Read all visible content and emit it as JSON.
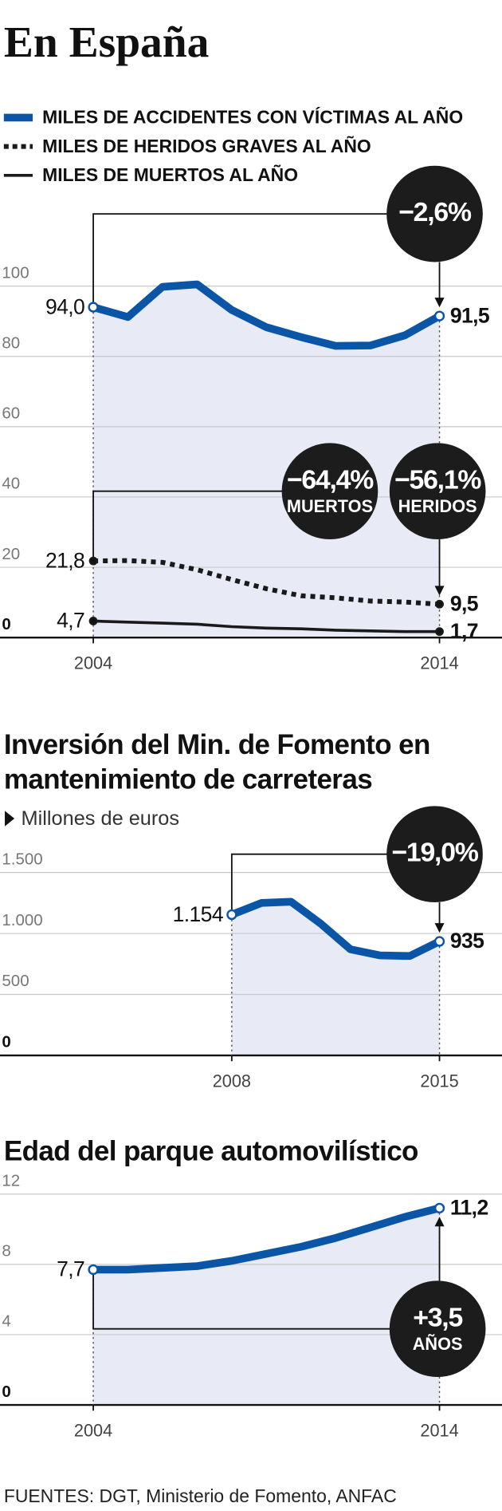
{
  "header": {
    "title": "En España"
  },
  "chart_data": [
    {
      "type": "line",
      "x": [
        2004,
        2005,
        2006,
        2007,
        2008,
        2009,
        2010,
        2011,
        2012,
        2013,
        2014
      ],
      "xlim": [
        2004,
        2014
      ],
      "xticks": [
        2004,
        2014
      ],
      "ylim": [
        0,
        100
      ],
      "yticks": [
        0,
        20,
        40,
        60,
        80,
        100
      ],
      "grid": true,
      "area_fill": "#e8ebf6",
      "series": [
        {
          "name": "MILES DE ACCIDENTES CON VÍCTIMAS AL AÑO",
          "color": "#0b55a6",
          "line_width": 8,
          "dashed": false,
          "values": [
            94.0,
            91.2,
            99.8,
            100.5,
            93.2,
            88.3,
            85.5,
            83.0,
            83.1,
            86.0,
            91.5
          ],
          "value_labels": [
            "94,0",
            null,
            null,
            null,
            null,
            null,
            null,
            null,
            null,
            null,
            "91,5"
          ]
        },
        {
          "name": "MILES DE HERIDOS GRAVES AL AÑO",
          "color": "#1a1a1a",
          "line_width": 5,
          "dashed": true,
          "values": [
            21.8,
            21.9,
            21.4,
            19.3,
            16.5,
            13.9,
            11.9,
            11.3,
            10.4,
            10.1,
            9.5
          ],
          "value_labels": [
            "21,8",
            null,
            null,
            null,
            null,
            null,
            null,
            null,
            null,
            null,
            "9,5"
          ]
        },
        {
          "name": "MILES DE MUERTOS AL AÑO",
          "color": "#1a1a1a",
          "line_width": 3,
          "dashed": false,
          "values": [
            4.7,
            4.4,
            4.1,
            3.8,
            3.1,
            2.7,
            2.5,
            2.1,
            1.9,
            1.7,
            1.7
          ],
          "value_labels": [
            "4,7",
            null,
            null,
            null,
            null,
            null,
            null,
            null,
            null,
            null,
            "1,7"
          ]
        }
      ],
      "annotations": [
        {
          "text": "−2,6%"
        },
        {
          "text": "−64,4%",
          "label": "MUERTOS"
        },
        {
          "text": "−56,1%",
          "label": "HERIDOS"
        }
      ]
    },
    {
      "type": "line",
      "title": "Inversión del Min. de Fomento en mantenimiento de carreteras",
      "subtitle": "Millones de euros",
      "x": [
        2008,
        2009,
        2010,
        2011,
        2012,
        2013,
        2014,
        2015
      ],
      "xlim": [
        2008,
        2015
      ],
      "xticks": [
        2008,
        2015
      ],
      "ylim": [
        0,
        1500
      ],
      "yticks": [
        0,
        500,
        {
          "value": 1000,
          "label": "1.000"
        },
        {
          "value": 1500,
          "label": "1.500"
        }
      ],
      "grid": true,
      "area_fill": "#e8ebf6",
      "series": [
        {
          "color": "#0b55a6",
          "line_width": 8,
          "dashed": false,
          "values": [
            1154,
            1250,
            1260,
            1080,
            870,
            820,
            815,
            935
          ],
          "value_labels": [
            "1.154",
            null,
            null,
            null,
            null,
            null,
            null,
            "935"
          ]
        }
      ],
      "annotations": [
        {
          "text": "−19,0%"
        }
      ]
    },
    {
      "type": "line",
      "title": "Edad del parque automovilístico",
      "x": [
        2004,
        2005,
        2006,
        2007,
        2008,
        2009,
        2010,
        2011,
        2012,
        2013,
        2014
      ],
      "xlim": [
        2004,
        2014
      ],
      "xticks": [
        2004,
        2014
      ],
      "ylim": [
        0,
        12
      ],
      "yticks": [
        0,
        4,
        8,
        12
      ],
      "grid": true,
      "area_fill": "#e8ebf6",
      "series": [
        {
          "color": "#0b55a6",
          "line_width": 8,
          "dashed": false,
          "values": [
            7.7,
            7.7,
            7.8,
            7.9,
            8.2,
            8.6,
            9.0,
            9.5,
            10.1,
            10.7,
            11.2
          ],
          "value_labels": [
            "7,7",
            null,
            null,
            null,
            null,
            null,
            null,
            null,
            null,
            null,
            "11,2"
          ]
        }
      ],
      "annotations": [
        {
          "text": "+3,5",
          "label": "AÑOS"
        }
      ]
    }
  ],
  "footer": {
    "source": "FUENTES: DGT, Ministerio de Fomento, ANFAC"
  }
}
